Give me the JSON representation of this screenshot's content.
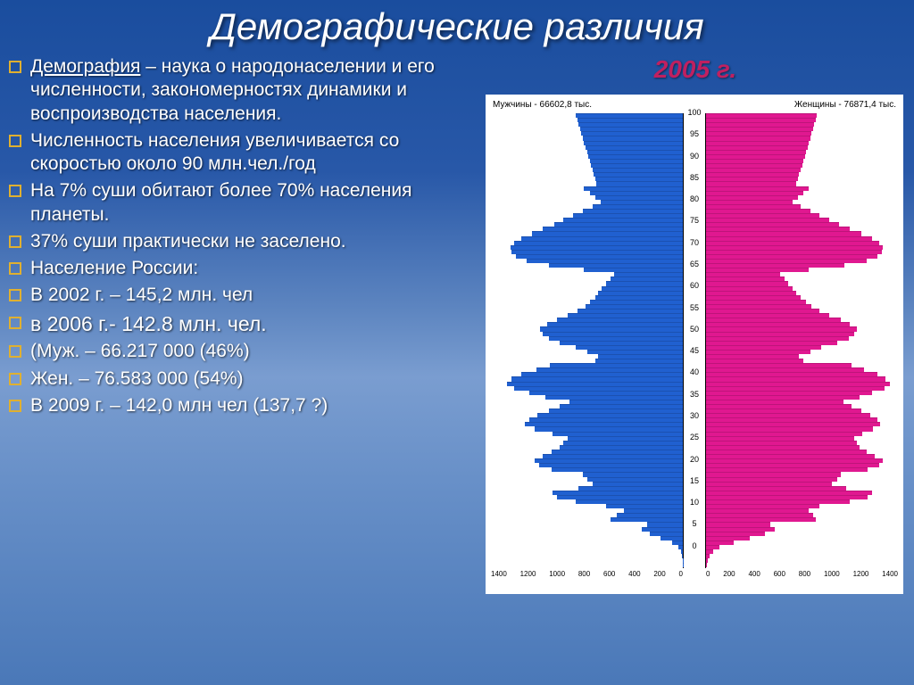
{
  "title": "Демографические различия",
  "year_label": "2005 г.",
  "bullets": [
    {
      "term": "Демография",
      "rest": " – наука о народонаселении и его численности, закономерностях динамики и воспроизводства населения."
    },
    {
      "text": "Численность населения увеличивается со скоростью около 90 млн.чел./год"
    },
    {
      "text": "На 7% суши обитают более 70% населения планеты."
    },
    {
      "text": "37% суши практически не заселено."
    },
    {
      "text": "Население России:"
    },
    {
      "text": "В 2002 г. – 145,2 млн. чел"
    },
    {
      "text": "в 2006 г.-  142.8 млн. чел.",
      "larger": true
    },
    {
      "text": "(Муж. – 66.217 000 (46%)"
    },
    {
      "text": "Жен. – 76.583 000 (54%)"
    },
    {
      "text": "В 2009 г. – 142,0 млн чел (137,7 ?)"
    }
  ],
  "chart": {
    "male_label": "Мужчины - 66602,8 тыс.",
    "female_label": "Женщины - 76871,4 тыс.",
    "male_color": "#2060d0",
    "female_color": "#e01890",
    "background": "#ffffff",
    "max_x": 1400,
    "x_ticks_left": [
      "1400",
      "1200",
      "1000",
      "800",
      "600",
      "400",
      "200",
      "0"
    ],
    "x_ticks_right": [
      "0",
      "200",
      "400",
      "600",
      "800",
      "1000",
      "1200",
      "1400"
    ],
    "age_ticks": [
      100,
      95,
      90,
      85,
      80,
      75,
      70,
      65,
      60,
      55,
      50,
      45,
      40,
      35,
      30,
      25,
      20,
      15,
      10,
      5,
      0
    ],
    "male_values": [
      1,
      2,
      5,
      10,
      30,
      80,
      160,
      240,
      300,
      260,
      530,
      480,
      430,
      560,
      780,
      920,
      950,
      760,
      660,
      700,
      730,
      960,
      1050,
      1080,
      1020,
      960,
      900,
      870,
      840,
      950,
      1080,
      1150,
      1120,
      1060,
      980,
      900,
      830,
      1000,
      1120,
      1230,
      1280,
      1250,
      1180,
      1070,
      970,
      640,
      620,
      700,
      780,
      900,
      980,
      1020,
      1040,
      990,
      920,
      840,
      770,
      710,
      680,
      640,
      620,
      590,
      560,
      530,
      500,
      720,
      980,
      1140,
      1220,
      1250,
      1260,
      1230,
      1180,
      1100,
      1020,
      940,
      870,
      800,
      730,
      660,
      600,
      640,
      680,
      720,
      630,
      640,
      650,
      660,
      670,
      680,
      690,
      700,
      710,
      720,
      730,
      740,
      750,
      760,
      770,
      780
    ],
    "female_values": [
      5,
      10,
      25,
      50,
      100,
      200,
      320,
      430,
      500,
      470,
      800,
      780,
      750,
      830,
      1050,
      1180,
      1210,
      1020,
      920,
      960,
      980,
      1180,
      1260,
      1290,
      1230,
      1170,
      1120,
      1100,
      1080,
      1140,
      1220,
      1270,
      1250,
      1200,
      1130,
      1060,
      1000,
      1120,
      1210,
      1300,
      1340,
      1310,
      1250,
      1150,
      1060,
      710,
      680,
      760,
      840,
      960,
      1040,
      1080,
      1100,
      1050,
      980,
      900,
      830,
      770,
      730,
      690,
      660,
      630,
      600,
      570,
      540,
      750,
      1010,
      1170,
      1250,
      1280,
      1290,
      1260,
      1210,
      1130,
      1050,
      970,
      900,
      830,
      760,
      690,
      630,
      670,
      710,
      750,
      660,
      670,
      680,
      690,
      700,
      710,
      720,
      730,
      740,
      750,
      760,
      770,
      780,
      790,
      800,
      810
    ]
  }
}
